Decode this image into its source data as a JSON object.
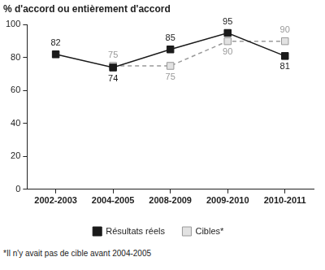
{
  "chart_data": {
    "type": "line",
    "ylabel": "% d'accord ou entièrement d'accord",
    "footnote": "*Il n'y avait pas de cible avant 2004-2005",
    "categories": [
      "2002-2003",
      "2004-2005",
      "2008-2009",
      "2009-2010",
      "2010-2011"
    ],
    "series": [
      {
        "name": "Résultats réels",
        "color": "#1a1a1a",
        "marker": "square",
        "line_style": "solid",
        "values": [
          82,
          74,
          85,
          95,
          81
        ]
      },
      {
        "name": "Cibles*",
        "color": "#999999",
        "marker": "square",
        "line_style": "dashed",
        "values": [
          null,
          75,
          75,
          90,
          90
        ]
      }
    ],
    "ylim": [
      0,
      100
    ],
    "yticks": [
      0,
      20,
      40,
      60,
      80,
      100
    ],
    "grid": false,
    "legend": "bottom",
    "data_labels": true
  }
}
